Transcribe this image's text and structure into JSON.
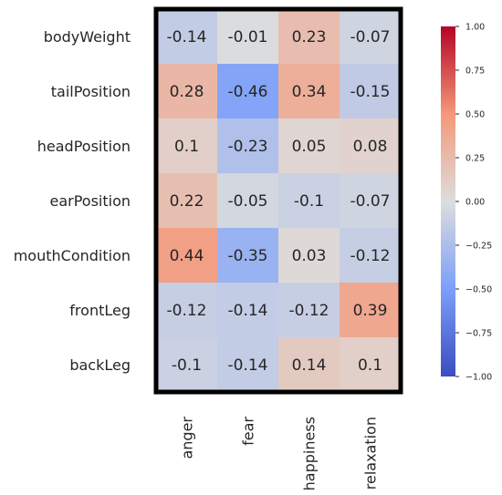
{
  "chart_data": {
    "type": "heatmap",
    "title": "",
    "xlabel": "",
    "ylabel": "",
    "rows": [
      "bodyWeight",
      "tailPosition",
      "headPosition",
      "earPosition",
      "mouthCondition",
      "frontLeg",
      "backLeg"
    ],
    "columns": [
      "anger",
      "fear",
      "happiness",
      "relaxation"
    ],
    "values": [
      [
        -0.14,
        -0.01,
        0.23,
        -0.07
      ],
      [
        0.28,
        -0.46,
        0.34,
        -0.15
      ],
      [
        0.1,
        -0.23,
        0.05,
        0.08
      ],
      [
        0.22,
        -0.05,
        -0.1,
        -0.07
      ],
      [
        0.44,
        -0.35,
        0.03,
        -0.12
      ],
      [
        -0.12,
        -0.14,
        -0.12,
        0.39
      ],
      [
        -0.1,
        -0.14,
        0.14,
        0.1
      ]
    ],
    "value_labels": [
      [
        "-0.14",
        "-0.01",
        "0.23",
        "-0.07"
      ],
      [
        "0.28",
        "-0.46",
        "0.34",
        "-0.15"
      ],
      [
        "0.1",
        "-0.23",
        "0.05",
        "0.08"
      ],
      [
        "0.22",
        "-0.05",
        "-0.1",
        "-0.07"
      ],
      [
        "0.44",
        "-0.35",
        "0.03",
        "-0.12"
      ],
      [
        "-0.12",
        "-0.14",
        "-0.12",
        "0.39"
      ],
      [
        "-0.1",
        "-0.14",
        "0.14",
        "0.1"
      ]
    ],
    "colormap": "coolwarm",
    "color_range": [
      -1.0,
      1.0
    ],
    "colorbar_ticks": [
      1.0,
      0.75,
      0.5,
      0.25,
      0.0,
      -0.25,
      -0.5,
      -0.75,
      -1.0
    ],
    "colorbar_tick_labels": [
      "1.00",
      "0.75",
      "0.50",
      "0.25",
      "0.00",
      "−0.25",
      "−0.50",
      "−0.75",
      "−1.00"
    ],
    "colorbar_placement": "right",
    "grid": false
  }
}
